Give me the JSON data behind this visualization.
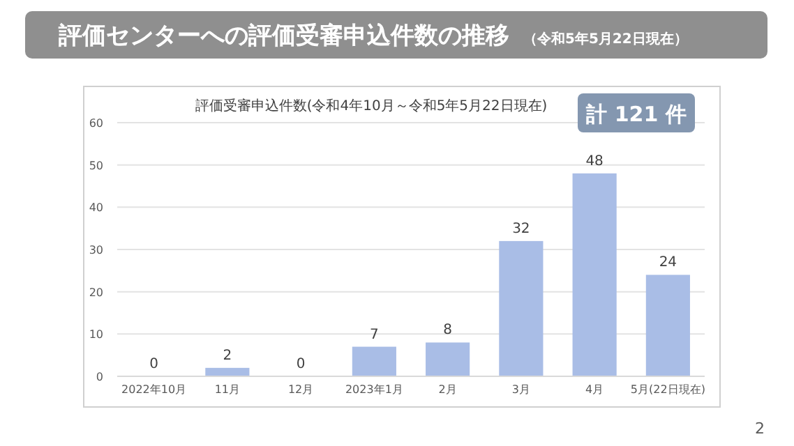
{
  "chart_data": {
    "type": "bar",
    "title": "評価センターへの評価受審申込件数の推移",
    "subtitle": "（令和5年5月22日現在）",
    "annotations": [
      "評価受審申込件数(令和4年10月～令和5年5月22日現在)",
      "計 121 件",
      "2"
    ],
    "categories": [
      "2022年10月",
      "11月",
      "12月",
      "2023年1月",
      "2月",
      "3月",
      "4月",
      "5月(22日現在)"
    ],
    "values": [
      0,
      2,
      0,
      7,
      8,
      32,
      48,
      24
    ],
    "color": "#a9bde6",
    "ylim": [
      0,
      60
    ],
    "yticks": [
      0,
      10,
      20,
      30,
      40,
      50,
      60
    ],
    "grid": "y",
    "data_labels": true
  }
}
